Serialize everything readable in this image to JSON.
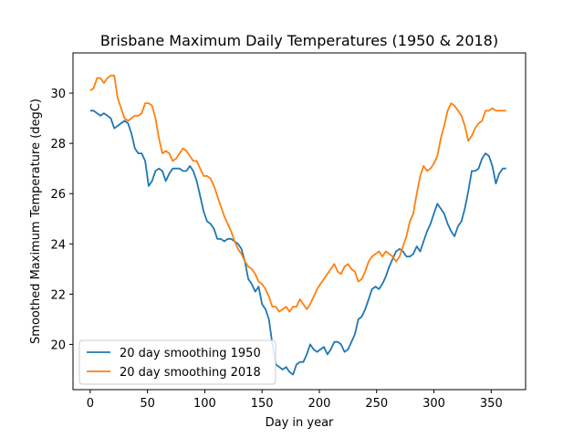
{
  "chart_data": {
    "type": "line",
    "title": "Brisbane Maximum Daily Temperatures (1950 & 2018)",
    "xlabel": "Day in year",
    "ylabel": "Smoothed Maximum Temperature (degC)",
    "xlim": [
      -15,
      380
    ],
    "ylim": [
      18.2,
      31.6
    ],
    "xticks": [
      0,
      50,
      100,
      150,
      200,
      250,
      300,
      350
    ],
    "yticks": [
      20,
      22,
      24,
      26,
      28,
      30
    ],
    "legend": "lower-left",
    "series": [
      {
        "name": "20 day smoothing 1950",
        "color": "#1f77b4",
        "x": [
          0,
          3,
          6,
          9,
          12,
          15,
          18,
          21,
          24,
          27,
          30,
          33,
          36,
          39,
          42,
          45,
          48,
          51,
          54,
          57,
          60,
          63,
          66,
          69,
          72,
          75,
          78,
          81,
          84,
          87,
          90,
          93,
          96,
          99,
          102,
          105,
          108,
          111,
          114,
          117,
          120,
          123,
          126,
          129,
          132,
          135,
          138,
          141,
          144,
          147,
          150,
          153,
          156,
          159,
          162,
          165,
          168,
          171,
          174,
          177,
          180,
          183,
          186,
          189,
          192,
          195,
          198,
          201,
          204,
          207,
          210,
          213,
          216,
          219,
          222,
          225,
          228,
          231,
          234,
          237,
          240,
          243,
          246,
          249,
          252,
          255,
          258,
          261,
          264,
          267,
          270,
          273,
          276,
          279,
          282,
          285,
          288,
          291,
          294,
          297,
          300,
          303,
          306,
          309,
          312,
          315,
          318,
          321,
          324,
          327,
          330,
          333,
          336,
          339,
          342,
          345,
          348,
          351,
          354,
          357,
          360,
          363
        ],
        "values": [
          29.3,
          29.3,
          29.2,
          29.1,
          29.2,
          29.1,
          29.0,
          28.6,
          28.7,
          28.8,
          28.9,
          28.8,
          28.4,
          27.8,
          27.6,
          27.6,
          27.3,
          26.3,
          26.5,
          26.9,
          27.0,
          26.9,
          26.5,
          26.8,
          27.0,
          27.0,
          27.0,
          26.9,
          26.9,
          27.1,
          26.9,
          26.5,
          25.9,
          25.3,
          24.9,
          24.8,
          24.6,
          24.2,
          24.2,
          24.1,
          24.2,
          24.2,
          24.1,
          24.0,
          23.8,
          23.3,
          22.6,
          22.4,
          22.1,
          22.3,
          21.6,
          21.4,
          21.0,
          20.0,
          19.2,
          19.1,
          19.0,
          19.1,
          18.9,
          18.8,
          19.2,
          19.3,
          19.3,
          19.6,
          20.0,
          19.8,
          19.7,
          19.8,
          19.9,
          19.6,
          19.8,
          20.1,
          20.1,
          20.0,
          19.7,
          19.8,
          20.1,
          20.4,
          21.0,
          21.1,
          21.4,
          21.8,
          22.2,
          22.3,
          22.2,
          22.4,
          22.7,
          23.1,
          23.4,
          23.7,
          23.8,
          23.7,
          23.5,
          23.5,
          23.6,
          23.9,
          23.7,
          24.1,
          24.5,
          24.8,
          25.2,
          25.6,
          25.4,
          25.2,
          24.8,
          24.5,
          24.3,
          24.7,
          24.9,
          25.4,
          26.1,
          26.9,
          26.9,
          27.0,
          27.4,
          27.6,
          27.5,
          27.1,
          26.4,
          26.8,
          27.0,
          27.0
        ]
      },
      {
        "name": "20 day smoothing 2018",
        "color": "#ff7f0e",
        "x": [
          0,
          3,
          6,
          9,
          12,
          15,
          18,
          21,
          24,
          27,
          30,
          33,
          36,
          39,
          42,
          45,
          48,
          51,
          54,
          57,
          60,
          63,
          66,
          69,
          72,
          75,
          78,
          81,
          84,
          87,
          90,
          93,
          96,
          99,
          102,
          105,
          108,
          111,
          114,
          117,
          120,
          123,
          126,
          129,
          132,
          135,
          138,
          141,
          144,
          147,
          150,
          153,
          156,
          159,
          162,
          165,
          168,
          171,
          174,
          177,
          180,
          183,
          186,
          189,
          192,
          195,
          198,
          201,
          204,
          207,
          210,
          213,
          216,
          219,
          222,
          225,
          228,
          231,
          234,
          237,
          240,
          243,
          246,
          249,
          252,
          255,
          258,
          261,
          264,
          267,
          270,
          273,
          276,
          279,
          282,
          285,
          288,
          291,
          294,
          297,
          300,
          303,
          306,
          309,
          312,
          315,
          318,
          321,
          324,
          327,
          330,
          333,
          336,
          339,
          342,
          345,
          348,
          351,
          354,
          357,
          360,
          363
        ],
        "values": [
          30.1,
          30.2,
          30.6,
          30.6,
          30.4,
          30.6,
          30.7,
          30.7,
          29.8,
          29.4,
          29.0,
          28.9,
          29.0,
          29.1,
          29.1,
          29.2,
          29.6,
          29.6,
          29.5,
          29.0,
          28.2,
          27.6,
          27.7,
          27.6,
          27.3,
          27.4,
          27.6,
          27.8,
          27.7,
          27.5,
          27.3,
          27.3,
          27.0,
          26.7,
          26.7,
          26.6,
          26.3,
          25.9,
          25.5,
          25.1,
          24.8,
          24.5,
          24.1,
          23.8,
          23.6,
          23.3,
          23.1,
          23.0,
          22.8,
          22.5,
          22.4,
          22.2,
          21.9,
          21.5,
          21.5,
          21.3,
          21.4,
          21.5,
          21.3,
          21.5,
          21.5,
          21.8,
          21.6,
          21.4,
          21.6,
          21.9,
          22.2,
          22.4,
          22.6,
          22.8,
          23.0,
          23.2,
          22.9,
          22.8,
          23.1,
          23.2,
          23.0,
          22.9,
          22.5,
          22.6,
          22.9,
          23.3,
          23.5,
          23.6,
          23.7,
          23.5,
          23.7,
          23.6,
          23.5,
          23.3,
          23.5,
          23.9,
          24.3,
          24.9,
          25.2,
          26.0,
          26.7,
          27.1,
          26.9,
          27.0,
          27.2,
          27.5,
          28.2,
          28.7,
          29.3,
          29.6,
          29.5,
          29.3,
          29.1,
          28.7,
          28.1,
          28.3,
          28.6,
          28.8,
          28.9,
          29.3,
          29.3,
          29.4,
          29.3,
          29.3,
          29.3,
          29.3
        ]
      }
    ]
  }
}
